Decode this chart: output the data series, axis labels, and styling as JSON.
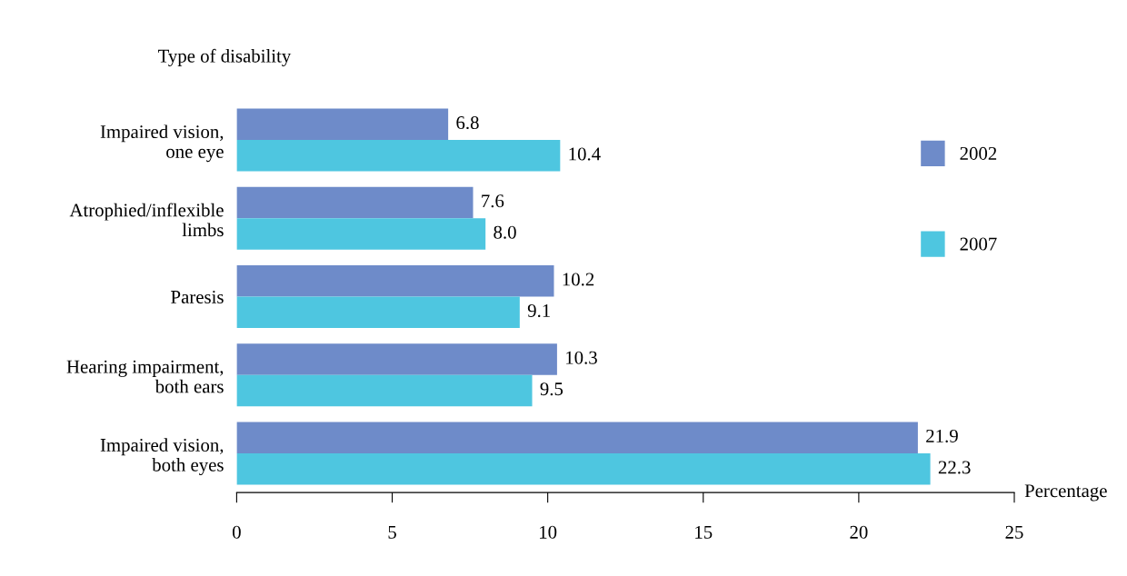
{
  "chart_data": {
    "type": "bar",
    "orientation": "horizontal",
    "ylabel": "Type of disability",
    "xlabel": "Percentage",
    "categories": [
      "Impaired vision,\none eye",
      "Atrophied/inflexible\nlimbs",
      "Paresis",
      "Hearing impairment,\nboth ears",
      "Impaired vision,\nboth eyes"
    ],
    "series": [
      {
        "name": "2002",
        "color": "#6e8bc9",
        "values": [
          6.8,
          7.6,
          10.2,
          10.3,
          21.9
        ],
        "value_labels": [
          "6.8",
          "7.6",
          "10.2",
          "10.3",
          "21.9"
        ]
      },
      {
        "name": "2007",
        "color": "#4ec6e0",
        "values": [
          10.4,
          8.0,
          9.1,
          9.5,
          22.3
        ],
        "value_labels": [
          "10.4",
          "8.0",
          "9.1",
          "9.5",
          "22.3"
        ]
      }
    ],
    "xlim": [
      0,
      25
    ],
    "xticks": [
      0,
      5,
      10,
      15,
      20,
      25
    ],
    "grid": false,
    "legend": "right"
  }
}
